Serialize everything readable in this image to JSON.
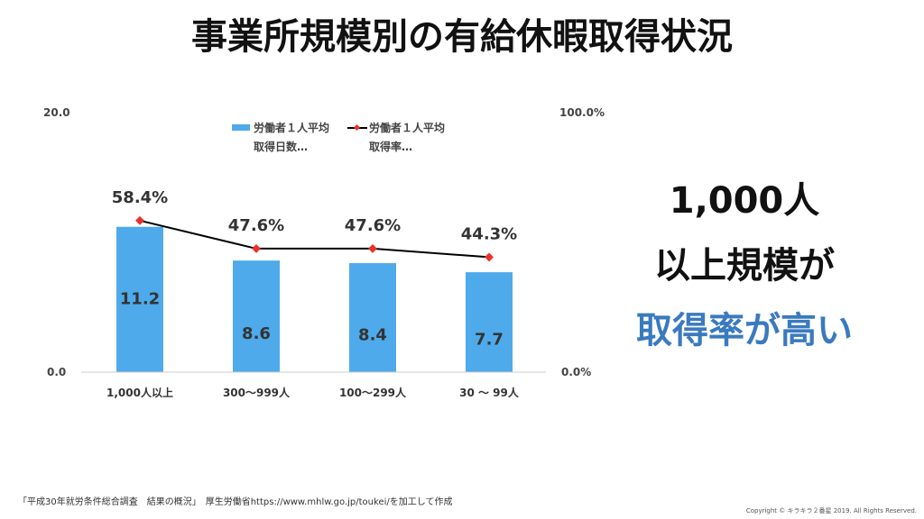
{
  "title": "事業所規模別の有給休暇取得状況",
  "message": {
    "line1": "1,000人",
    "line2": "以上規模が",
    "line3": "取得率が高い",
    "accent": "#3a7abf"
  },
  "source": "「平成30年就労条件総合調査　結果の概況」　厚生労働省https://www.mhlw.go.jp/toukei/を加工して作成",
  "copyright": "Copyright © キラキラ２番星 2019. All Rights Reserved.",
  "chart_data": {
    "type": "bar+line",
    "categories": [
      "1,000人以上",
      "300〜999人",
      "100〜299人",
      "30 〜 99人"
    ],
    "series": [
      {
        "name": "労働者１人平均取得日数…",
        "type": "bar",
        "axis": "left",
        "values": [
          11.2,
          8.6,
          8.4,
          7.7
        ],
        "labels": [
          "11.2",
          "8.6",
          "8.4",
          "7.7"
        ],
        "color": "#4eaaea"
      },
      {
        "name": "労働者１人平均取得率…",
        "type": "line",
        "axis": "right",
        "values": [
          58.4,
          47.6,
          47.6,
          44.3
        ],
        "labels": [
          "58.4%",
          "47.6%",
          "47.6%",
          "44.3%"
        ],
        "color": "#000000",
        "marker_color": "#e8312a"
      }
    ],
    "y_left": {
      "range": [
        0,
        20
      ],
      "ticks": [
        "0.0",
        "20.0"
      ]
    },
    "y_right": {
      "range": [
        0,
        100
      ],
      "ticks": [
        "0.0%",
        "100.0%"
      ]
    },
    "legend": {
      "position": "top",
      "items": [
        [
          "労働者１人平均",
          "取得日数…"
        ],
        [
          "労働者１人平均",
          "取得率…"
        ]
      ]
    },
    "grid": false
  }
}
